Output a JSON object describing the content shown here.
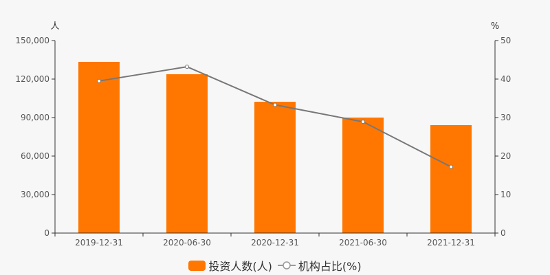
{
  "chart_data": {
    "type": "bar+line",
    "categories": [
      "2019-12-31",
      "2020-06-30",
      "2020-12-31",
      "2021-06-30",
      "2021-12-31"
    ],
    "series": [
      {
        "name": "投资人数(人)",
        "type": "bar",
        "axis": "left",
        "color": "#ff7700",
        "values": [
          133400,
          123750,
          102300,
          90000,
          84100
        ]
      },
      {
        "name": "机构占比(%)",
        "type": "line",
        "axis": "right",
        "color": "#777777",
        "values": [
          39.5,
          43.2,
          33.3,
          28.9,
          17.2
        ]
      }
    ],
    "y_left": {
      "unit": "人",
      "ticks": [
        "0",
        "30,000",
        "60,000",
        "90,000",
        "120,000",
        "150,000"
      ],
      "range": [
        0,
        150000
      ]
    },
    "y_right": {
      "unit": "%",
      "ticks": [
        "0",
        "10",
        "20",
        "30",
        "40",
        "50"
      ],
      "range": [
        0,
        50
      ]
    },
    "grid": false,
    "legend_position": "bottom"
  },
  "legend": {
    "bar_label": "投资人数(人)",
    "line_label": "机构占比(%)"
  }
}
